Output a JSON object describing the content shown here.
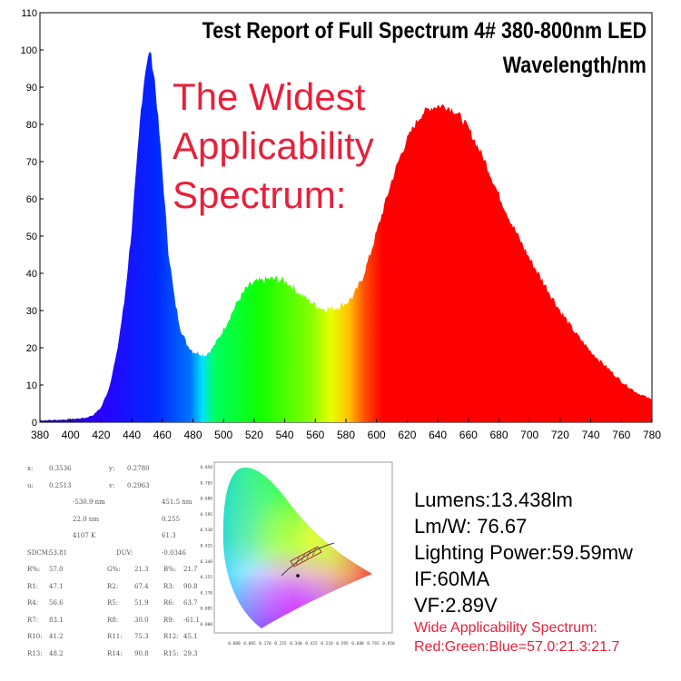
{
  "chart_data": {
    "type": "area",
    "title": "Test Report of Full Spectrum 4# 380-800nm LED",
    "subtitle": "Wavelength/nm",
    "overlay_text": [
      "The Widest",
      "Applicability",
      "Spectrum:"
    ],
    "xlim": [
      380,
      780
    ],
    "ylim": [
      0,
      110
    ],
    "x_ticks": [
      "380",
      "400",
      "420",
      "440",
      "460",
      "480",
      "500",
      "520",
      "540",
      "560",
      "580",
      "600",
      "620",
      "640",
      "660",
      "680",
      "700",
      "720",
      "740",
      "760",
      "780"
    ],
    "y_ticks": [
      "0",
      "10",
      "20",
      "30",
      "40",
      "50",
      "60",
      "70",
      "80",
      "90",
      "100",
      "110"
    ],
    "fill": "wavelength-colored",
    "x": [
      380,
      390,
      400,
      410,
      415,
      420,
      425,
      430,
      435,
      440,
      443,
      446,
      449,
      452,
      455,
      458,
      461,
      464,
      468,
      472,
      476,
      480,
      484,
      488,
      492,
      496,
      500,
      505,
      510,
      515,
      520,
      525,
      530,
      535,
      540,
      545,
      550,
      555,
      560,
      565,
      570,
      575,
      580,
      585,
      590,
      595,
      600,
      605,
      610,
      615,
      620,
      625,
      630,
      635,
      640,
      645,
      650,
      655,
      660,
      665,
      670,
      675,
      680,
      690,
      700,
      710,
      720,
      730,
      740,
      750,
      760,
      770,
      780
    ],
    "y": [
      0.5,
      0.6,
      0.8,
      1.2,
      2,
      4,
      9,
      18,
      32,
      52,
      68,
      84,
      95,
      100,
      92,
      78,
      62,
      46,
      33,
      25,
      21,
      19,
      18.5,
      18,
      19.5,
      22,
      25,
      29,
      33,
      36,
      37.5,
      38,
      38.5,
      38.5,
      38,
      36.5,
      34.5,
      33,
      31.5,
      30.5,
      30.5,
      31,
      32,
      34,
      38,
      44,
      51,
      58,
      65,
      71,
      76,
      80,
      83,
      84.5,
      85,
      85,
      84,
      82,
      79,
      75,
      71,
      66,
      61,
      52,
      44,
      37,
      30,
      24,
      19,
      15,
      11,
      8,
      6
    ]
  },
  "cie_chart": {
    "x_ticks": [
      "0.000",
      "0.085",
      "0.170",
      "0.255",
      "0.340",
      "0.425",
      "0.510",
      "0.595",
      "0.680",
      "0.765",
      "0.850"
    ],
    "y_ticks": [
      "0.850",
      "0.765",
      "0.680",
      "0.595",
      "0.510",
      "0.425",
      "0.340",
      "0.255",
      "0.170",
      "0.085",
      "0.000"
    ]
  },
  "data_table": [
    [
      "x:",
      "0.3536",
      "y:",
      "0.2780",
      "",
      ""
    ],
    [
      "u:",
      "0.2513",
      "v:",
      "0.2963",
      "",
      ""
    ],
    [
      "",
      "-530.9 nm",
      "",
      "451.5 nm",
      "",
      ""
    ],
    [
      "",
      "22.0 nm",
      "",
      "0.255",
      "",
      ""
    ],
    [
      "",
      "4107 K",
      "",
      "61.3",
      "",
      ""
    ],
    [
      "SDCM:",
      "53.81",
      "DUV:",
      "-0.0346",
      "",
      ""
    ],
    [
      "R%:",
      "57.0",
      "G%:",
      "21.3",
      "B%:",
      "21.7"
    ],
    [
      "R1:",
      "47.1",
      "R2:",
      "67.4",
      "R3:",
      "90.8"
    ],
    [
      "R4:",
      "56.6",
      "R5:",
      "51.9",
      "R6:",
      "63.7"
    ],
    [
      "R7:",
      "83.1",
      "R8:",
      "30.0",
      "R9:",
      "-61.1"
    ],
    [
      "R10:",
      "41.2",
      "R11:",
      "75.3",
      "R12:",
      "45.1"
    ],
    [
      "R13:",
      "48.2",
      "R14:",
      "90.8",
      "R15:",
      "29.3"
    ]
  ],
  "metrics": {
    "lumens": "Lumens:13.438lm",
    "lmw": "Lm/W: 76.67",
    "power": "Lighting Power:59.59mw",
    "if": "IF:60MA",
    "vf": "VF:2.89V",
    "wide_label": "Wide Applicability Spectrum:",
    "ratio": "Red:Green:Blue=57.0:21.3:21.7"
  },
  "colors": {
    "accent_red": "#e8203a"
  }
}
